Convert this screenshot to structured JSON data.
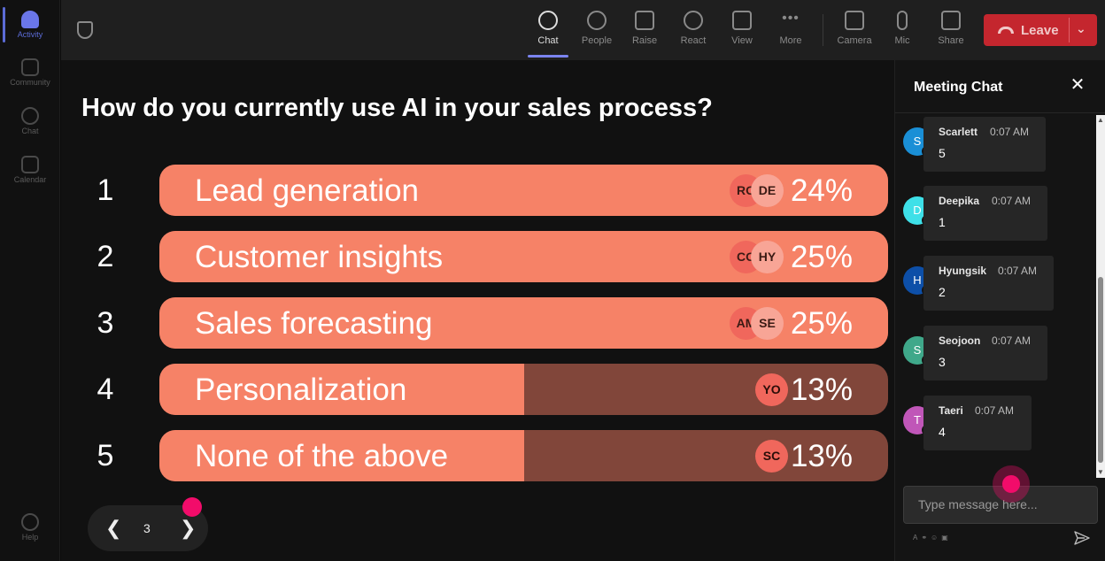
{
  "rail": {
    "items": [
      {
        "label": "Activity",
        "icon": "bell-icon",
        "active": true
      },
      {
        "label": "Community",
        "icon": "community-icon"
      },
      {
        "label": "Chat",
        "icon": "chat-icon"
      },
      {
        "label": "Calendar",
        "icon": "calendar-icon"
      }
    ],
    "help_label": "Help"
  },
  "toolbar": {
    "chat": "Chat",
    "people": "People",
    "raise": "Raise",
    "react": "React",
    "view": "View",
    "more": "More",
    "camera": "Camera",
    "mic": "Mic",
    "share": "Share",
    "leave": "Leave"
  },
  "poll": {
    "question": "How do you currently use AI in your sales process?",
    "options": [
      {
        "number": "1",
        "label": "Lead generation",
        "percent": "24%",
        "fill": 1.0,
        "avatars": [
          "RO",
          "DE"
        ]
      },
      {
        "number": "2",
        "label": "Customer insights",
        "percent": "25%",
        "fill": 1.0,
        "avatars": [
          "CO",
          "HY"
        ]
      },
      {
        "number": "3",
        "label": "Sales forecasting",
        "percent": "25%",
        "fill": 1.0,
        "avatars": [
          "AM",
          "SE"
        ]
      },
      {
        "number": "4",
        "label": "Personalization",
        "percent": "13%",
        "fill": 0.5,
        "avatars": [
          "YO"
        ]
      },
      {
        "number": "5",
        "label": "None of the above",
        "percent": "13%",
        "fill": 0.5,
        "avatars": [
          "SC"
        ]
      }
    ],
    "page": "3",
    "colors": {
      "fill": "#f68267",
      "track": "#81463a"
    }
  },
  "chat": {
    "title": "Meeting Chat",
    "messages": [
      {
        "initial": "S",
        "name": "Scarlett",
        "time": "0:07 AM",
        "body": "5",
        "color": "#1a8fd6"
      },
      {
        "initial": "D",
        "name": "Deepika",
        "time": "0:07 AM",
        "body": "1",
        "color": "#3ee0e8"
      },
      {
        "initial": "H",
        "name": "Hyungsik",
        "time": "0:07 AM",
        "body": "2",
        "color": "#0d4fa8"
      },
      {
        "initial": "S",
        "name": "Seojoon",
        "time": "0:07 AM",
        "body": "3",
        "color": "#3fa88a"
      },
      {
        "initial": "T",
        "name": "Taeri",
        "time": "0:07 AM",
        "body": "4",
        "color": "#c056b8"
      }
    ],
    "input_placeholder": "Type message here..."
  }
}
